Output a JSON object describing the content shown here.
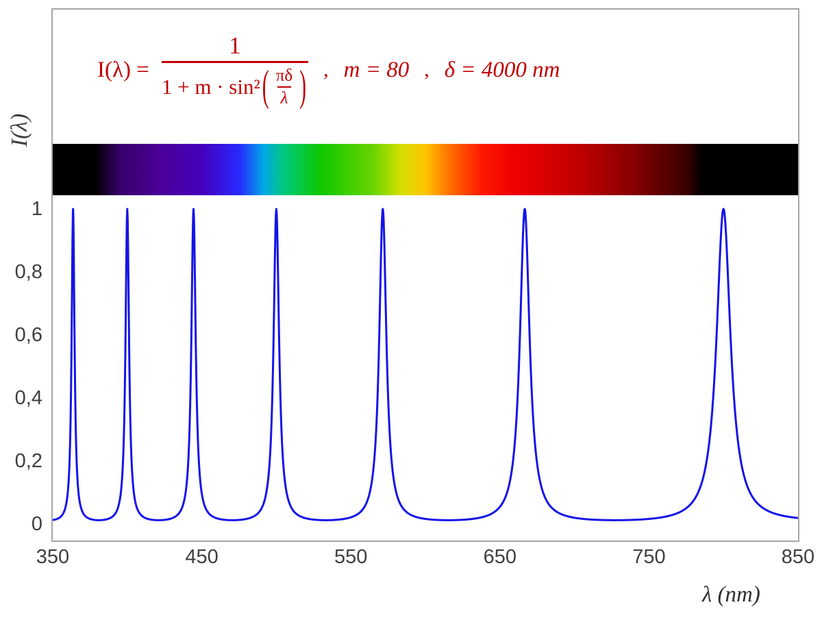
{
  "chart_data": {
    "type": "line",
    "title": "I(lambda) = 1 / (1 + m*sin^2(pi*delta/lambda)) , m = 80 , delta = 4000 nm",
    "xlabel": "λ  (nm)",
    "ylabel": "I(λ)",
    "x_range": [
      350,
      850
    ],
    "y_range": [
      0,
      1
    ],
    "x_ticks": [
      350,
      450,
      550,
      650,
      750,
      850
    ],
    "y_ticks": [
      {
        "value": 0,
        "label": "0"
      },
      {
        "value": 0.2,
        "label": "0,2"
      },
      {
        "value": 0.4,
        "label": "0,4"
      },
      {
        "value": 0.6,
        "label": "0,6"
      },
      {
        "value": 0.8,
        "label": "0,8"
      },
      {
        "value": 1,
        "label": "1"
      }
    ],
    "function": "I(λ) = 1 / (1 + m·sin²(πδ/λ))",
    "m": 80,
    "delta_nm": 4000,
    "peaks_nm": [
      363.64,
      400,
      444.44,
      500,
      571.43,
      666.67,
      800
    ],
    "peak_height": 1,
    "min_intensity": 0.0123,
    "sample_step_nm": 0.25,
    "line_color": "#1414e8",
    "grid": false,
    "legend": false,
    "spectrum_bar": {
      "range_nm": [
        350,
        850
      ],
      "visible_range_nm": [
        380,
        780
      ],
      "stops": [
        {
          "pos": 0.0,
          "color": "#000000"
        },
        {
          "pos": 0.057,
          "color": "#000000"
        },
        {
          "pos": 0.09,
          "color": "#38006b"
        },
        {
          "pos": 0.145,
          "color": "#4c0099"
        },
        {
          "pos": 0.2,
          "color": "#4400bb"
        },
        {
          "pos": 0.25,
          "color": "#2929ff"
        },
        {
          "pos": 0.283,
          "color": "#00a8e8"
        },
        {
          "pos": 0.31,
          "color": "#00c87d"
        },
        {
          "pos": 0.36,
          "color": "#0fc800"
        },
        {
          "pos": 0.43,
          "color": "#6ad300"
        },
        {
          "pos": 0.468,
          "color": "#d6e000"
        },
        {
          "pos": 0.5,
          "color": "#ffc400"
        },
        {
          "pos": 0.532,
          "color": "#ff7100"
        },
        {
          "pos": 0.575,
          "color": "#ff1900"
        },
        {
          "pos": 0.62,
          "color": "#ee0000"
        },
        {
          "pos": 0.7,
          "color": "#c40000"
        },
        {
          "pos": 0.78,
          "color": "#860000"
        },
        {
          "pos": 0.85,
          "color": "#3a0000"
        },
        {
          "pos": 0.872,
          "color": "#000000"
        },
        {
          "pos": 1.0,
          "color": "#000000"
        }
      ]
    }
  },
  "formula": {
    "lhs": "I(λ) =",
    "numerator": "1",
    "den_prefix": "1 + m · sin²",
    "inner_numerator": "πδ",
    "inner_denominator": "λ",
    "comma_1": ",",
    "m_equation": "m = 80",
    "comma_2": ",",
    "delta_equation": "δ = 4000 nm",
    "color": "#c00000"
  },
  "axes": {
    "y_title": "I(λ)",
    "x_title": "λ  (nm)"
  },
  "colors": {
    "curve": "#1414e8",
    "formula": "#c00000",
    "axis_text": "#3f3f3f",
    "frame_border": "#a6a6a6",
    "background": "#ffffff"
  }
}
